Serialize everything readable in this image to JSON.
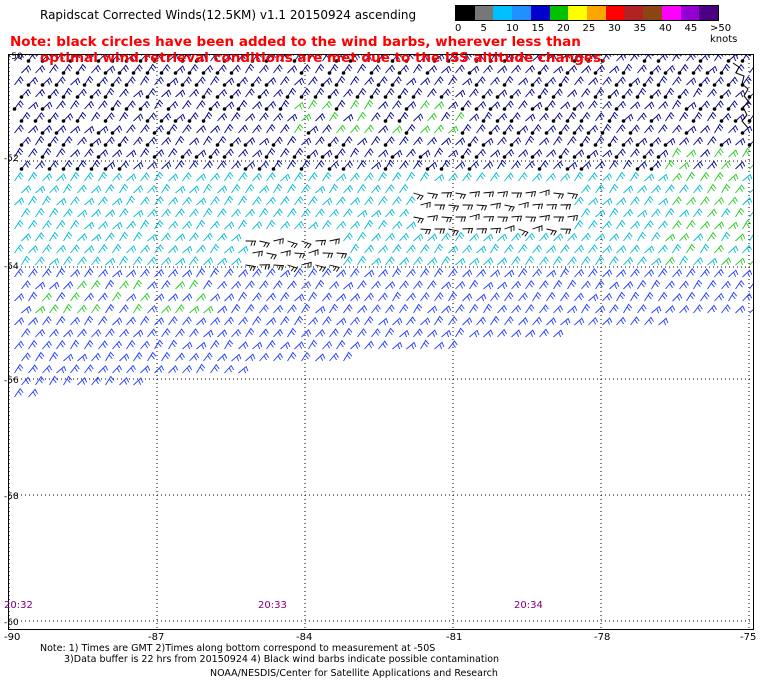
{
  "title": "Rapidscat Corrected Winds(12.5KM) v1.1 20150924 ascending",
  "note": {
    "line1": "Note: black circles have been added to the wind barbs, wherever less than",
    "line2": "optimal wind retrieval conditions are met due to the ISS altitude changes."
  },
  "legend": {
    "labels": [
      "0",
      "5",
      "10",
      "15",
      "20",
      "25",
      "30",
      "35",
      "40",
      "45",
      ">50 knots"
    ],
    "colors": [
      "#000000",
      "#777777",
      "#00bfff",
      "#1e90ff",
      "#0000cd",
      "#00c000",
      "#ffff00",
      "#ffa500",
      "#ff0000",
      "#b22222",
      "#8b4513",
      "#ff00ff",
      "#9400d3",
      "#4b0082"
    ]
  },
  "lat_labels": [
    "-50",
    "-52",
    "-54",
    "-56",
    "-58",
    "-60"
  ],
  "lon_labels": [
    "-90",
    "-87",
    "-84",
    "-81",
    "-78",
    "-75"
  ],
  "time_labels": [
    "20:32",
    "20:33",
    "20:34"
  ],
  "footer": {
    "line1": "Note: 1) Times are GMT 2)Times along bottom correspond to measurement at -50S",
    "line2": "3)Data buffer is 22 hrs from 20150924 4) Black wind barbs indicate possible contamination",
    "line3": "NOAA/NESDIS/Center for Satellite Applications and Research"
  },
  "colors": {
    "note": "#ff0000",
    "time": "#800080",
    "barb_dark": "#00008b",
    "barb_blue": "#1e3cff",
    "barb_cyan": "#00bcd4",
    "barb_green": "#22cc22",
    "barb_black": "#000000"
  }
}
